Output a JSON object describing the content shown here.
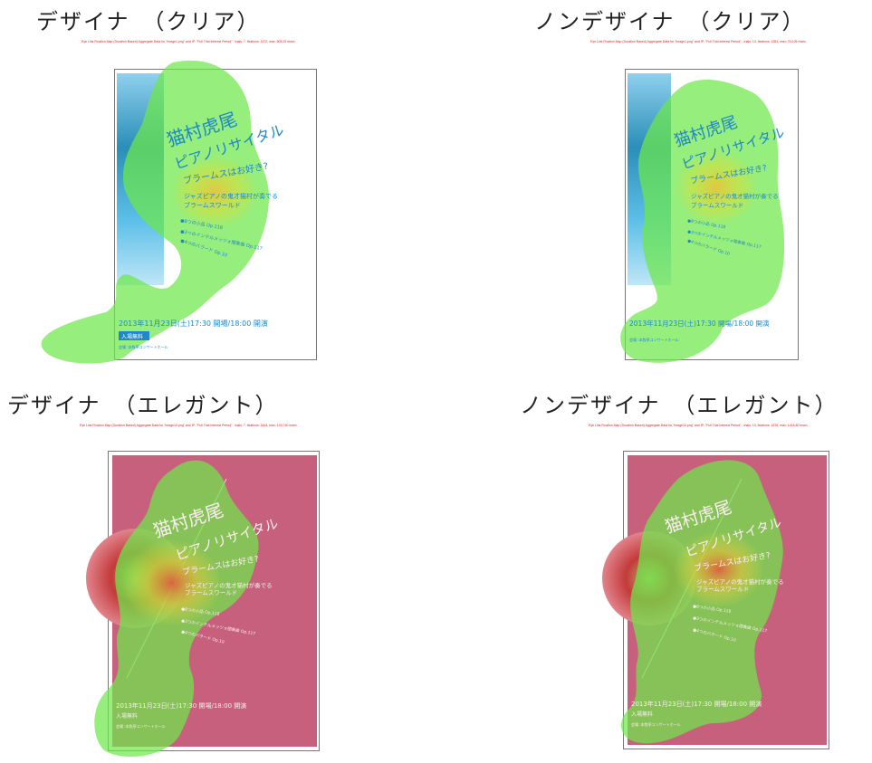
{
  "panels": [
    {
      "title": "デザイナ　（クリア）",
      "caption": "Eye Link Fixation Map (Duration Based) Aggregate Data for \"image1.png\" and IP: \"Full Trial Interest Period\" - trials: 7, fixations: 1172, max: 605.25 msec.",
      "theme": "clear"
    },
    {
      "title": "ノンデザイナ　（クリア）",
      "caption": "Eye Link Fixation Map (Duration Based) Aggregate Data for \"image1.png\" and IP: \"Full Trial Interest Period\" - trials: 13, fixations: 1351, max: 714.05 msec.",
      "theme": "clear"
    },
    {
      "title": "デザイナ　（エレガント）",
      "caption": "Eye Link Fixation Map (Duration Based) Aggregate Data for \"image10.png\" and IP: \"Full Trial Interest Period\" - trials: 7, fixations: 1444, max: 1017.50 msec.",
      "theme": "elegant"
    },
    {
      "title": "ノンデザイナ　（エレガント）",
      "caption": "Eye Link Fixation Map (Duration Based) Aggregate Data for \"image10.png\" and IP: \"Full Trial Interest Period\" - trials: 13, fixations: 1376, max: 1416.80 msec.",
      "theme": "elegant"
    }
  ],
  "poster": {
    "name": "猫村虎尾",
    "recital": "ピアノリサイタル",
    "question": "ブラームスはお好き?",
    "subtitle1": "ジャズピアノの鬼才猫村が奏でる",
    "subtitle2": "ブラームスワールド",
    "pieces": [
      "●8つの小品 Op.118",
      "●3つのインテルメッツォ間奏曲 Op.117",
      "●4つのバラード Op.10"
    ],
    "date": "2013年11月23日(土)17:30 開場/18:00 開演",
    "admission": "入場無料",
    "venue": "会場 :本牧亭コンサートホール"
  },
  "colors": {
    "clear_accent": "#1e88c8",
    "clear_bg": "#ffffff",
    "elegant_bg": "#c7607c",
    "heat_low": "#6ee84a",
    "heat_mid": "#e8e23a",
    "heat_high": "#e8543a",
    "caption_red": "#e0191e"
  }
}
